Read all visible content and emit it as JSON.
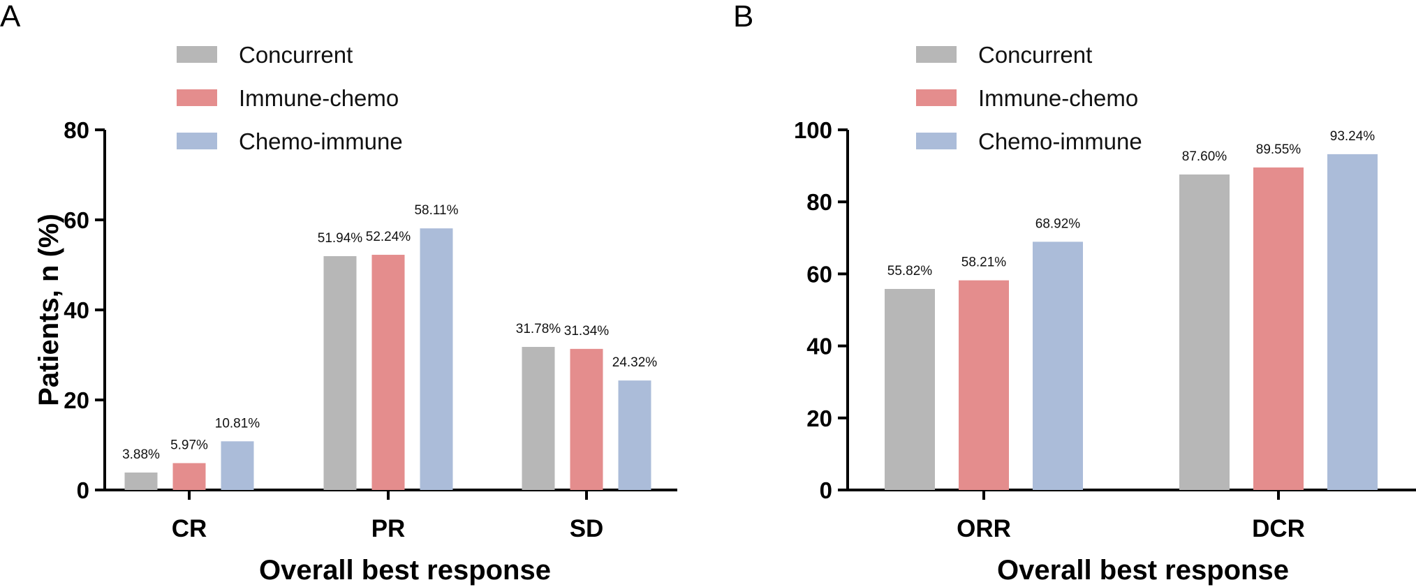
{
  "colors": {
    "Concurrent": "#b7b7b7",
    "Immune-chemo": "#e48d8d",
    "Chemo-immune": "#abbcd9"
  },
  "legend": [
    "Concurrent",
    "Immune-chemo",
    "Chemo-immune"
  ],
  "chart_data": [
    {
      "panel": "A",
      "type": "bar",
      "title": "",
      "xlabel": "Overall best response",
      "ylabel": "Patients, n (%)",
      "ylim": [
        0,
        80
      ],
      "yticks": [
        0,
        20,
        40,
        60,
        80
      ],
      "categories": [
        "CR",
        "PR",
        "SD"
      ],
      "series": [
        {
          "name": "Concurrent",
          "values": [
            3.88,
            51.94,
            31.78
          ],
          "labels": [
            "3.88%",
            "51.94%",
            "31.78%"
          ]
        },
        {
          "name": "Immune-chemo",
          "values": [
            5.97,
            52.24,
            31.34
          ],
          "labels": [
            "5.97%",
            "52.24%",
            "31.34%"
          ]
        },
        {
          "name": "Chemo-immune",
          "values": [
            10.81,
            58.11,
            24.32
          ],
          "labels": [
            "10.81%",
            "58.11%",
            "24.32%"
          ]
        }
      ]
    },
    {
      "panel": "B",
      "type": "bar",
      "title": "",
      "xlabel": "Overall best response",
      "ylabel": "",
      "ylim": [
        0,
        100
      ],
      "yticks": [
        0,
        20,
        40,
        60,
        80,
        100
      ],
      "categories": [
        "ORR",
        "DCR"
      ],
      "series": [
        {
          "name": "Concurrent",
          "values": [
            55.82,
            87.6
          ],
          "labels": [
            "55.82%",
            "87.60%"
          ]
        },
        {
          "name": "Immune-chemo",
          "values": [
            58.21,
            89.55
          ],
          "labels": [
            "58.21%",
            "89.55%"
          ]
        },
        {
          "name": "Chemo-immune",
          "values": [
            68.92,
            93.24
          ],
          "labels": [
            "68.92%",
            "93.24%"
          ]
        }
      ]
    }
  ]
}
